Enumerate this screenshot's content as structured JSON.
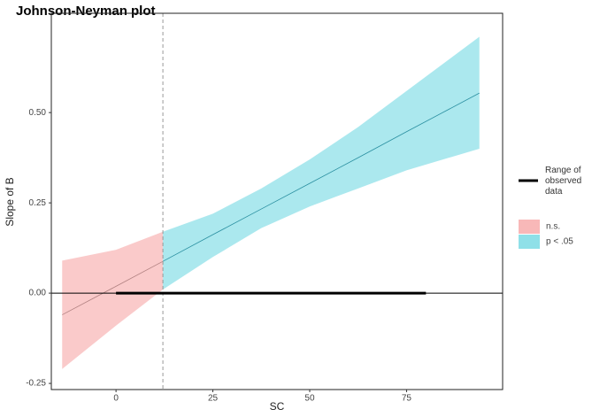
{
  "chart_data": {
    "type": "johnson-neyman",
    "title": "Johnson-Neyman plot",
    "xlabel": "SC",
    "ylabel": "Slope of B",
    "x": [
      -13.9,
      0,
      12.1,
      25,
      37.5,
      50,
      62.5,
      75,
      93.8
    ],
    "estimate": [
      -0.06,
      0.019,
      0.088,
      0.162,
      0.233,
      0.304,
      0.375,
      0.447,
      0.554
    ],
    "lower": [
      -0.21,
      -0.09,
      0.01,
      0.1,
      0.18,
      0.24,
      0.29,
      0.34,
      0.4
    ],
    "upper": [
      0.09,
      0.12,
      0.17,
      0.22,
      0.29,
      0.37,
      0.46,
      0.56,
      0.71
    ],
    "threshold": 12.1,
    "observed_range": [
      0,
      80
    ],
    "observed_label": "Range of observed data",
    "regions": [
      {
        "name": "n.s.",
        "color": "#f8b8b8",
        "line_color": "#b08080"
      },
      {
        "name": "p < .05",
        "color": "#8fe0e8",
        "line_color": "#2a8fa0"
      }
    ],
    "xlim": [
      -16.7,
      99.8
    ],
    "ylim": [
      -0.267,
      0.775
    ],
    "xticks": [
      0,
      25,
      50,
      75
    ],
    "yticks": [
      {
        "value": -0.25,
        "label": "-0.25"
      },
      {
        "value": 0,
        "label": "0.00"
      },
      {
        "value": 0.25,
        "label": "0.25"
      },
      {
        "value": 0.5,
        "label": "0.50"
      }
    ]
  }
}
